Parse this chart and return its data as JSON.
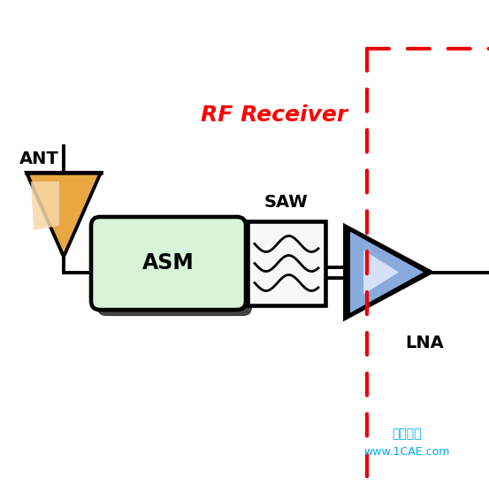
{
  "bg_color": "#ffffff",
  "title": "RF Receiver",
  "title_color": "#ff0000",
  "title_fontsize": 18,
  "ant_label": "ANT",
  "asm_label": "ASM",
  "saw_label": "SAW",
  "lna_label": "LNA",
  "watermark1": "仿真在线",
  "watermark2": "www.1CAE.com",
  "watermark_color": "#00aaee",
  "ant_color_light": "#f8d8a8",
  "ant_color_dark": "#e8a844",
  "asm_fill": "#d8f4d8",
  "asm_shadow": "#444444",
  "saw_fill": "#f8f8f8",
  "lna_fill_center": "#e8f0ff",
  "lna_fill_mid": "#88aadd",
  "lna_fill_dark": "#1133aa",
  "dashed_color": "#ee0000",
  "line_color": "#000000",
  "lw": 2.8
}
